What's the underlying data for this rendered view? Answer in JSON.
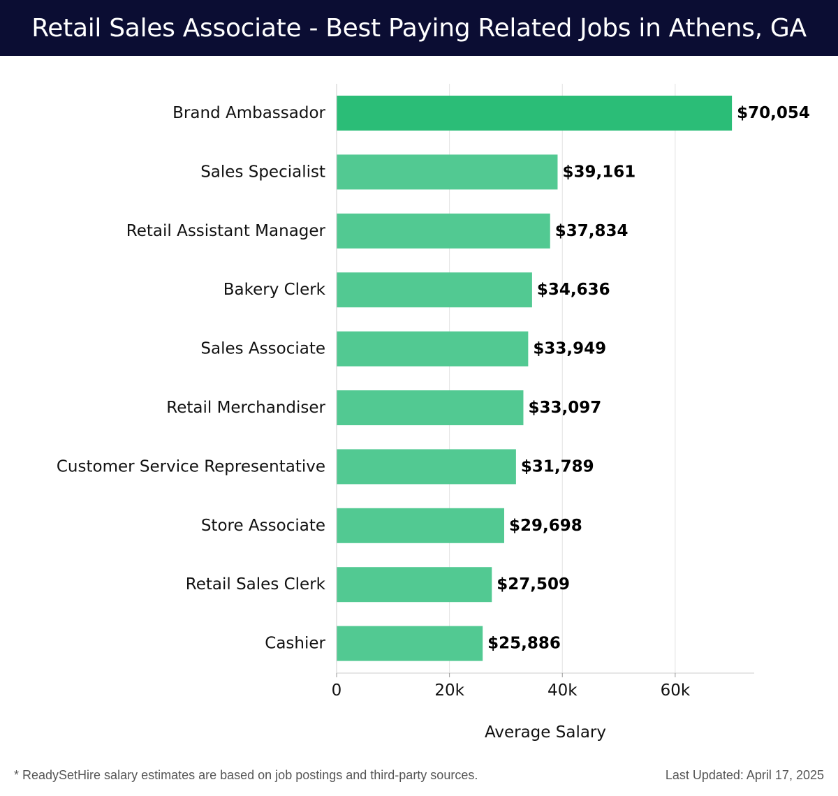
{
  "header": {
    "title": "Retail Sales Associate - Best Paying Related Jobs in Athens, GA"
  },
  "chart_data": {
    "type": "bar",
    "orientation": "horizontal",
    "categories": [
      "Brand Ambassador",
      "Sales Specialist",
      "Retail Assistant Manager",
      "Bakery Clerk",
      "Sales Associate",
      "Retail Merchandiser",
      "Customer Service Representative",
      "Store Associate",
      "Retail Sales Clerk",
      "Cashier"
    ],
    "values": [
      70054,
      39161,
      37834,
      34636,
      33949,
      33097,
      31789,
      29698,
      27509,
      25886
    ],
    "value_labels": [
      "$70,054",
      "$39,161",
      "$37,834",
      "$34,636",
      "$33,949",
      "$33,097",
      "$31,789",
      "$29,698",
      "$27,509",
      "$25,886"
    ],
    "xlabel": "Average Salary",
    "ylabel": "",
    "xlim": [
      0,
      74000
    ],
    "xticks": [
      0,
      20000,
      40000,
      60000
    ],
    "xtick_labels": [
      "0",
      "20k",
      "40k",
      "60k"
    ],
    "grid": "vertical",
    "colors": {
      "top_bar": "#2bbd77",
      "bar": "#52c992"
    }
  },
  "footer": {
    "note": "* ReadySetHire salary estimates are based on job postings and third-party sources.",
    "updated": "Last Updated: April 17, 2025"
  }
}
